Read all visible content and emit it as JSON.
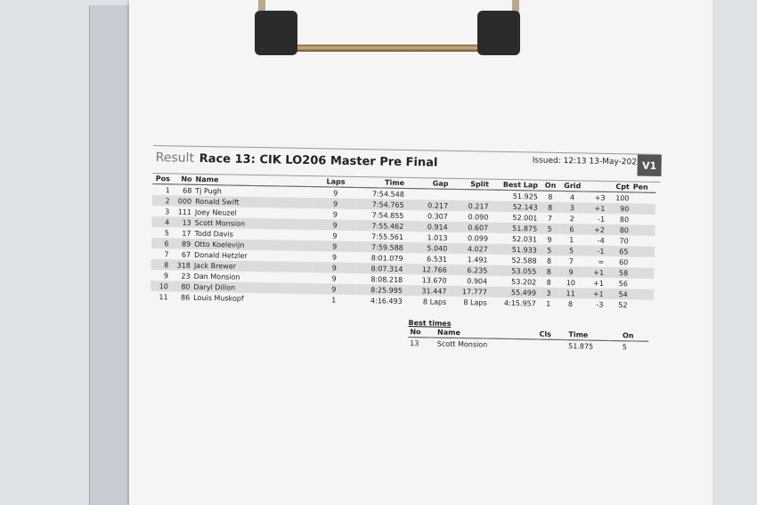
{
  "header": {
    "result_label": "Result",
    "title": "Race 13: CIK LO206 Master Pre Final",
    "issued": "Issued: 12:13 13-May-2023",
    "version": "V1"
  },
  "columns": [
    "Pos",
    "No",
    "Name",
    "Laps",
    "Time",
    "Gap",
    "Split",
    "Best Lap",
    "On",
    "Grid",
    "",
    "Cpt",
    "Pen"
  ],
  "rows": [
    [
      "1",
      "68",
      "Tj Pugh",
      "9",
      "7:54.548",
      "",
      "",
      "51.925",
      "8",
      "4",
      "+3",
      "100",
      ""
    ],
    [
      "2",
      "000",
      "Ronald Swift",
      "9",
      "7:54.765",
      "0.217",
      "0.217",
      "52.143",
      "8",
      "3",
      "+1",
      "90",
      ""
    ],
    [
      "3",
      "111",
      "Joey Neuzel",
      "9",
      "7:54.855",
      "0.307",
      "0.090",
      "52.001",
      "7",
      "2",
      "-1",
      "80",
      ""
    ],
    [
      "4",
      "13",
      "Scott Monsion",
      "9",
      "7:55.462",
      "0.914",
      "0.607",
      "51.875",
      "5",
      "6",
      "+2",
      "80",
      ""
    ],
    [
      "5",
      "17",
      "Todd Davis",
      "9",
      "7:55.561",
      "1.013",
      "0.099",
      "52.031",
      "9",
      "1",
      "-4",
      "70",
      ""
    ],
    [
      "6",
      "89",
      "Otto Koelevijn",
      "9",
      "7:59.588",
      "5.040",
      "4.027",
      "51.933",
      "5",
      "5",
      "-1",
      "65",
      ""
    ],
    [
      "7",
      "67",
      "Donald Hetzler",
      "9",
      "8:01.079",
      "6.531",
      "1.491",
      "52.588",
      "8",
      "7",
      "=",
      "60",
      ""
    ],
    [
      "8",
      "318",
      "Jack Brewer",
      "9",
      "8:07.314",
      "12.766",
      "6.235",
      "53.055",
      "8",
      "9",
      "+1",
      "58",
      ""
    ],
    [
      "9",
      "23",
      "Dan Monsion",
      "9",
      "8:08.218",
      "13.670",
      "0.904",
      "53.202",
      "8",
      "10",
      "+1",
      "56",
      ""
    ],
    [
      "10",
      "80",
      "Daryl Dillon",
      "9",
      "8:25.995",
      "31.447",
      "17.777",
      "55.499",
      "3",
      "11",
      "+1",
      "54",
      ""
    ],
    [
      "11",
      "86",
      "Louis Muskopf",
      "1",
      "4:16.493",
      "8 Laps",
      "8 Laps",
      "4:15.957",
      "1",
      "8",
      "-3",
      "52",
      ""
    ]
  ],
  "best_times": {
    "label": "Best times",
    "columns": [
      "No",
      "Name",
      "Cls",
      "Time",
      "On"
    ],
    "rows": [
      [
        "13",
        "Scott Monsion",
        "",
        "51.875",
        "5"
      ]
    ]
  }
}
